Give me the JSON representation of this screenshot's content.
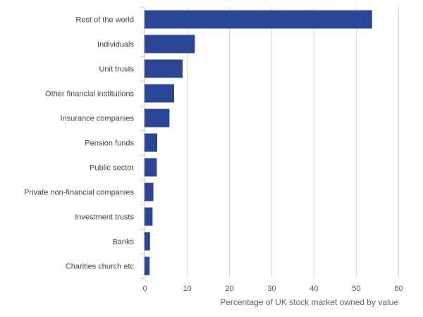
{
  "chart_data": {
    "type": "bar",
    "orientation": "horizontal",
    "title": "",
    "xlabel": "Percentage of UK stock market owned by value",
    "ylabel": "",
    "categories": [
      "Rest of the world",
      "Individuals",
      "Unit trusts",
      "Other financial institutions",
      "Insurance companies",
      "Pension funds",
      "Public sector",
      "Private non-financial companies",
      "Investment trusts",
      "Banks",
      "Charities church etc"
    ],
    "values": [
      53.8,
      11.9,
      9.0,
      7.0,
      5.9,
      3.0,
      2.9,
      2.1,
      1.9,
      1.3,
      1.2
    ],
    "xlim": [
      0,
      60
    ],
    "xticks": [
      0,
      10,
      20,
      30,
      40,
      50,
      60
    ],
    "grid": "vertical",
    "legend": "none",
    "bar_color": "#2b4597",
    "grid_color": "#d9d9d9",
    "axis_color": "#c8ccd6"
  }
}
